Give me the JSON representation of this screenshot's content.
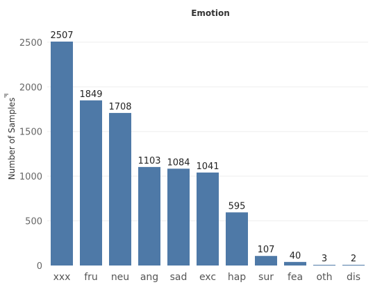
{
  "chart_data": {
    "type": "bar",
    "title": "Emotion",
    "ylabel": "Number of Samples",
    "xlabel": "",
    "categories": [
      "xxx",
      "fru",
      "neu",
      "ang",
      "sad",
      "exc",
      "hap",
      "sur",
      "fea",
      "oth",
      "dis"
    ],
    "values": [
      2507,
      1849,
      1708,
      1103,
      1084,
      1041,
      595,
      107,
      40,
      3,
      2
    ],
    "ylim": [
      0,
      2600
    ],
    "yticks": [
      0,
      500,
      1000,
      1500,
      2000,
      2500
    ],
    "grid": true,
    "bar_color": "#4e79a7",
    "sort_icon": "sort-descending-icon"
  }
}
